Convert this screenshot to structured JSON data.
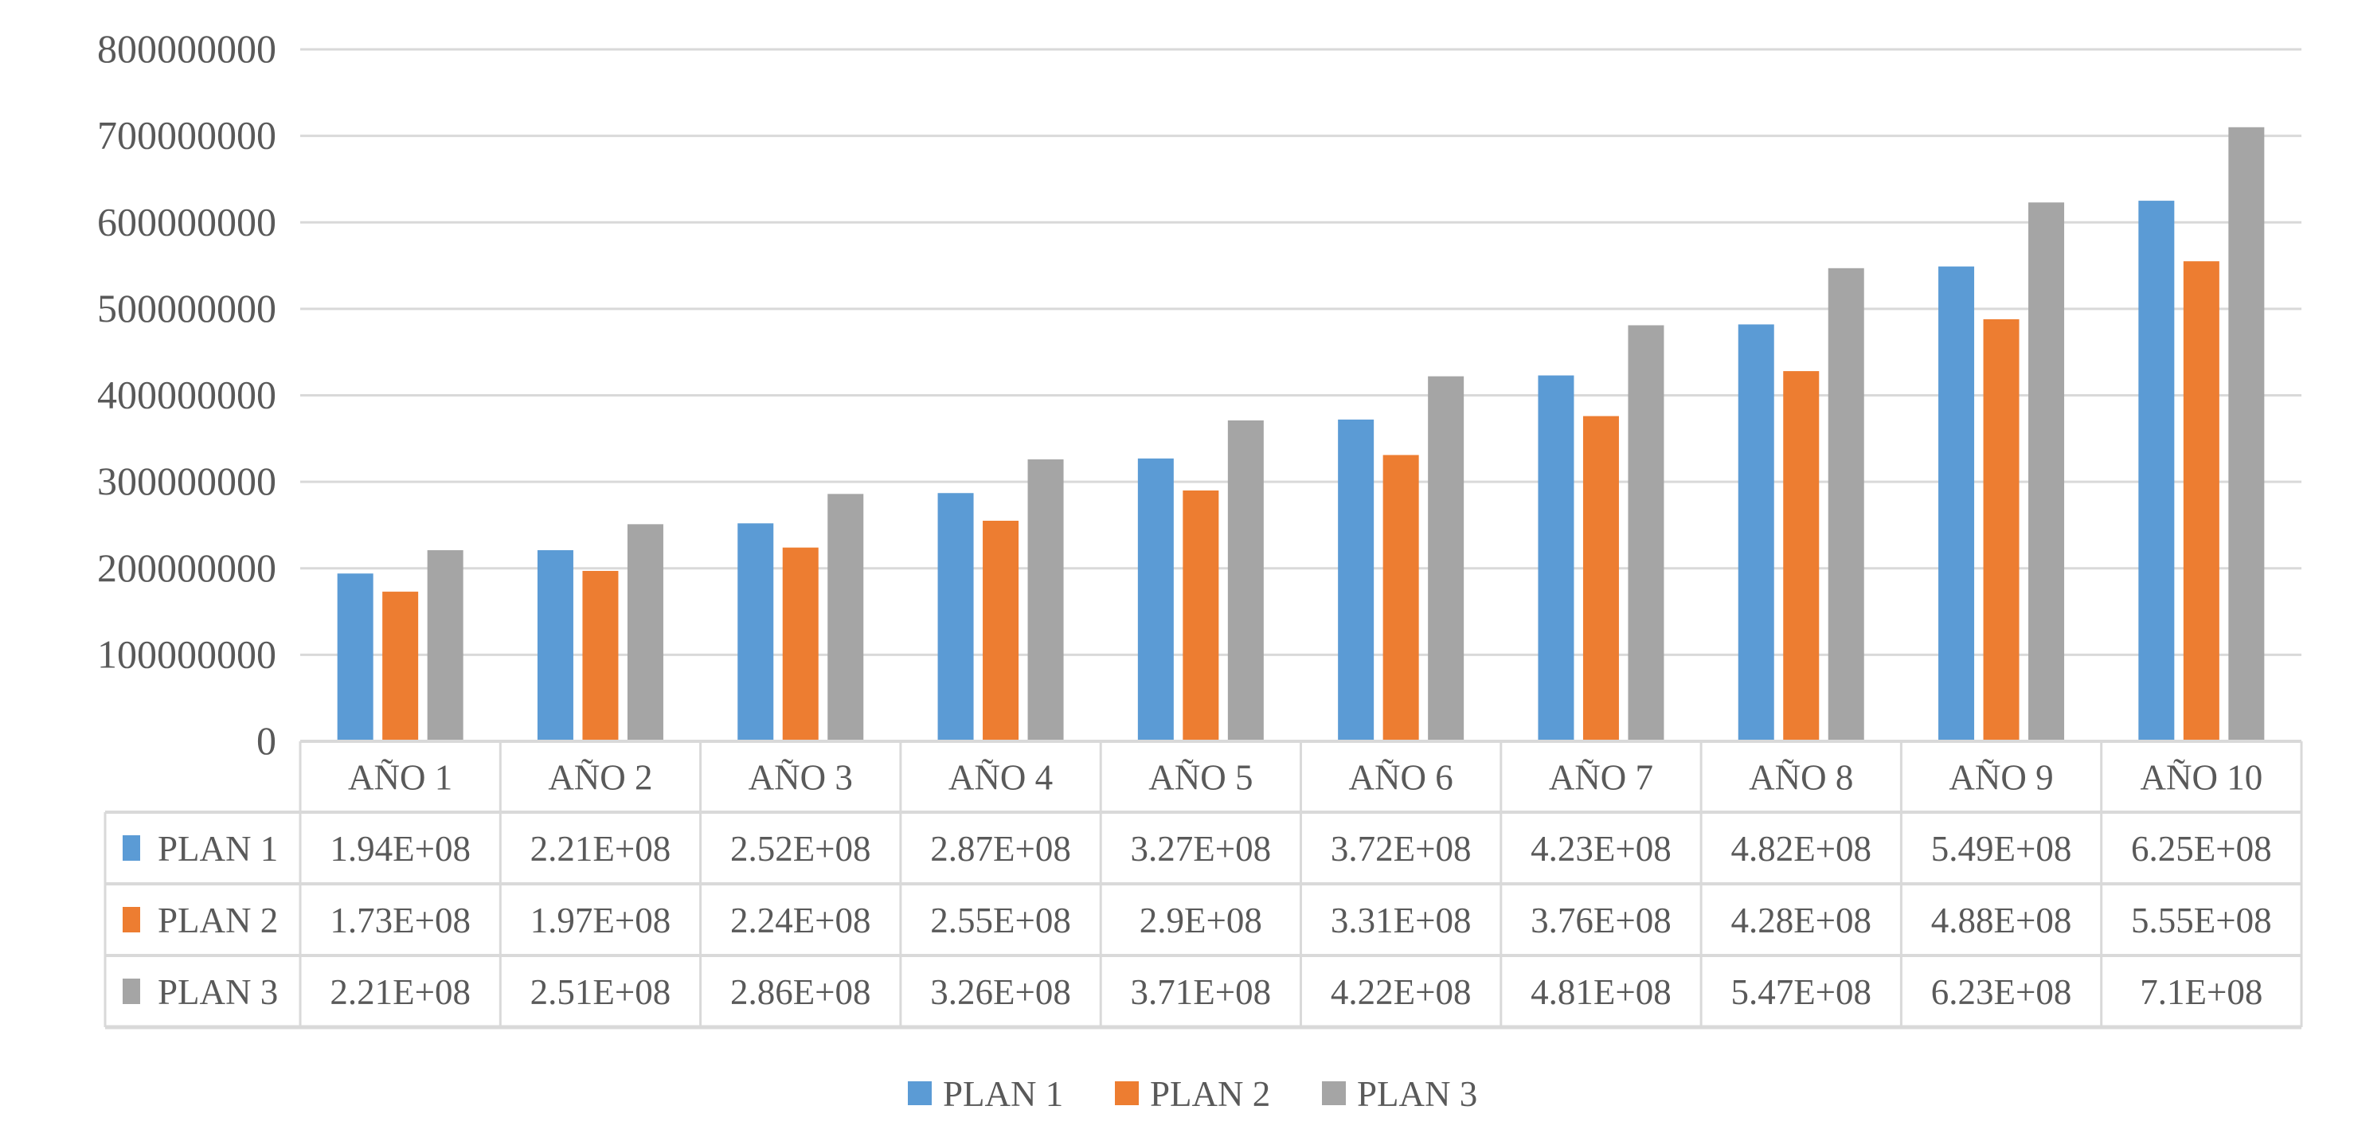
{
  "chart_data": {
    "type": "bar",
    "title": "",
    "xlabel": "",
    "ylabel": "",
    "ylim": [
      0,
      800000000
    ],
    "yticks": [
      "0",
      "100000000",
      "200000000",
      "300000000",
      "400000000",
      "500000000",
      "600000000",
      "700000000",
      "800000000"
    ],
    "grid": true,
    "legend_position": "bottom",
    "categories": [
      "AÑO 1",
      "AÑO 2",
      "AÑO 3",
      "AÑO 4",
      "AÑO 5",
      "AÑO 6",
      "AÑO 7",
      "AÑO 8",
      "AÑO 9",
      "AÑO 10"
    ],
    "series": [
      {
        "name": "PLAN 1",
        "color": "#5b9bd5",
        "values": [
          194000000,
          221000000,
          252000000,
          287000000,
          327000000,
          372000000,
          423000000,
          482000000,
          549000000,
          625000000
        ],
        "labels": [
          "1.94E+08",
          "2.21E+08",
          "2.52E+08",
          "2.87E+08",
          "3.27E+08",
          "3.72E+08",
          "4.23E+08",
          "4.82E+08",
          "5.49E+08",
          "6.25E+08"
        ]
      },
      {
        "name": "PLAN 2",
        "color": "#ed7d31",
        "values": [
          173000000,
          197000000,
          224000000,
          255000000,
          290000000,
          331000000,
          376000000,
          428000000,
          488000000,
          555000000
        ],
        "labels": [
          "1.73E+08",
          "1.97E+08",
          "2.24E+08",
          "2.55E+08",
          "2.9E+08",
          "3.31E+08",
          "3.76E+08",
          "4.28E+08",
          "4.88E+08",
          "5.55E+08"
        ]
      },
      {
        "name": "PLAN 3",
        "color": "#a5a5a5",
        "values": [
          221000000,
          251000000,
          286000000,
          326000000,
          371000000,
          422000000,
          481000000,
          547000000,
          623000000,
          710000000
        ],
        "labels": [
          "2.21E+08",
          "2.51E+08",
          "2.86E+08",
          "3.26E+08",
          "3.71E+08",
          "4.22E+08",
          "4.81E+08",
          "5.47E+08",
          "6.23E+08",
          "7.1E+08"
        ]
      }
    ]
  }
}
